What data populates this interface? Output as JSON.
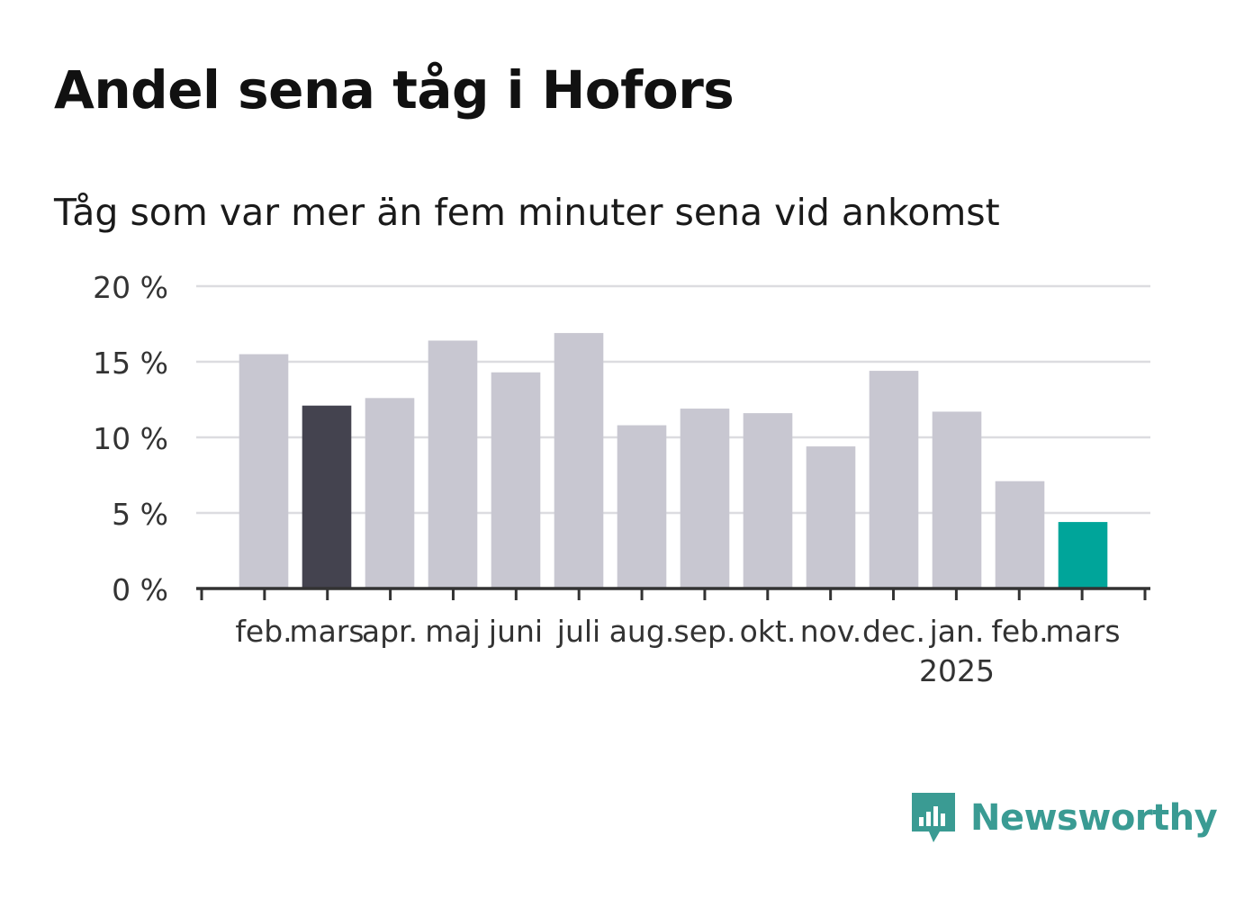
{
  "header": {
    "title": "Andel sena tåg i Hofors",
    "subtitle": "Tåg som var mer än fem minuter sena vid ankomst"
  },
  "chart_data": {
    "type": "bar",
    "categories": [
      "feb.",
      "mars",
      "apr.",
      "maj",
      "juni",
      "juli",
      "aug.",
      "sep.",
      "okt.",
      "nov.",
      "dec.",
      "jan.",
      "feb.",
      "mars"
    ],
    "year_labels": [
      {
        "index": 11,
        "label": "2025"
      }
    ],
    "values": [
      15.5,
      12.1,
      12.6,
      16.4,
      14.3,
      16.9,
      10.8,
      11.9,
      11.6,
      9.4,
      14.4,
      11.7,
      7.1,
      4.4
    ],
    "bar_colors": [
      "#c8c7d1",
      "#44434f",
      "#c8c7d1",
      "#c8c7d1",
      "#c8c7d1",
      "#c8c7d1",
      "#c8c7d1",
      "#c8c7d1",
      "#c8c7d1",
      "#c8c7d1",
      "#c8c7d1",
      "#c8c7d1",
      "#c8c7d1",
      "#00a59a"
    ],
    "ylim": [
      0,
      20
    ],
    "yticks": [
      0,
      5,
      10,
      15,
      20
    ],
    "ytick_labels": [
      "0 %",
      "5 %",
      "10 %",
      "15 %",
      "20 %"
    ],
    "grid": true,
    "xlabel": "",
    "ylabel": ""
  },
  "branding": {
    "logo_text": "Newsworthy",
    "logo_icon": "newsworthy-chart-bubble-icon",
    "color": "#3a9b93"
  }
}
